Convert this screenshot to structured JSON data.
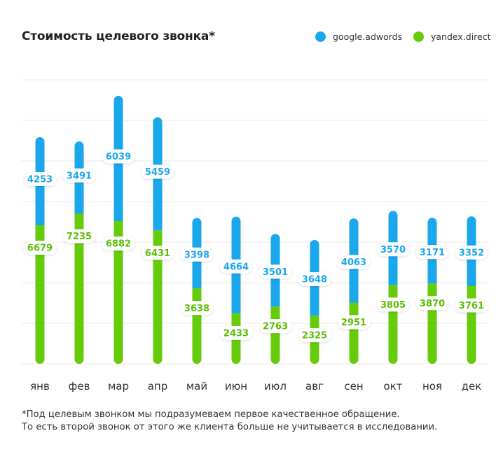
{
  "title": "Стоимость целевого звонка*",
  "legend": [
    {
      "label": "google.adwords",
      "color": "#1aa7ec"
    },
    {
      "label": "yandex.direct",
      "color": "#66cc0a"
    }
  ],
  "footnote": {
    "line1": "*Под целевым звонком мы подразумеваем первое качественное обращение.",
    "line2": "То есть второй звонок от этого же клиента больше не учитывается в исследовании."
  },
  "chart_data": {
    "type": "bar",
    "stacked": true,
    "title": "Стоимость целевого звонка*",
    "categories": [
      "янв",
      "фев",
      "мар",
      "апр",
      "май",
      "июн",
      "июл",
      "авг",
      "сен",
      "окт",
      "ноя",
      "дек"
    ],
    "series": [
      {
        "name": "yandex.direct",
        "color": "#66cc0a",
        "values": [
          6679,
          7235,
          6882,
          6431,
          3638,
          2433,
          2763,
          2325,
          2951,
          3805,
          3870,
          3761
        ]
      },
      {
        "name": "google.adwords",
        "color": "#1aa7ec",
        "values": [
          4253,
          3491,
          6039,
          5459,
          3398,
          4664,
          3501,
          3648,
          4063,
          3570,
          3171,
          3352
        ]
      }
    ],
    "grid": true,
    "legend_position": "top-right"
  }
}
